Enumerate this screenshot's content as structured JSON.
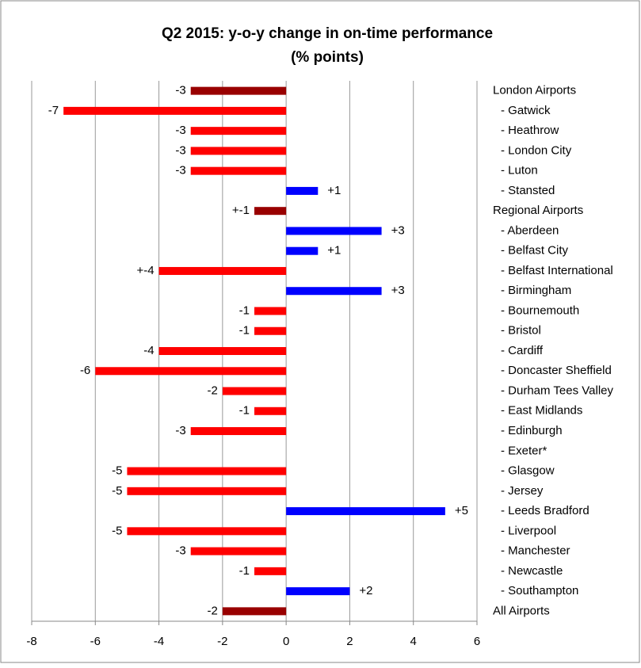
{
  "chart_data": {
    "type": "bar",
    "orientation": "horizontal",
    "title": "Q2 2015: y-o-y change in on-time performance",
    "subtitle": "(% points)",
    "categories": [
      "London Airports",
      "- Gatwick",
      "- Heathrow",
      "- London City",
      "- Luton",
      "- Stansted",
      "Regional Airports",
      "- Aberdeen",
      "- Belfast City",
      "- Belfast International",
      "- Birmingham",
      "- Bournemouth",
      "- Bristol",
      "- Cardiff",
      "- Doncaster Sheffield",
      "- Durham Tees Valley",
      "- East Midlands",
      "- Edinburgh",
      "- Exeter*",
      "- Glasgow",
      "- Jersey",
      "- Leeds Bradford",
      "- Liverpool",
      "- Manchester",
      "- Newcastle",
      "- Southampton",
      "All Airports"
    ],
    "values": [
      -3,
      -7,
      -3,
      -3,
      -3,
      1,
      -1,
      3,
      1,
      -4,
      3,
      -1,
      -1,
      -4,
      -6,
      -2,
      -1,
      -3,
      null,
      -5,
      -5,
      5,
      -5,
      -3,
      -1,
      2,
      -2
    ],
    "value_labels": [
      "-3",
      "-7",
      "-3",
      "-3",
      "-3",
      "+1",
      "+-1",
      "+3",
      "+1",
      "+-4",
      "+3",
      "-1",
      "-1",
      "-4",
      "-6",
      "-2",
      "-1",
      "-3",
      null,
      "-5",
      "-5",
      "+5",
      "-5",
      "-3",
      "-1",
      "+2",
      "-2"
    ],
    "colors": [
      "#990000",
      "#ff0000",
      "#ff0000",
      "#ff0000",
      "#ff0000",
      "#0000ff",
      "#990000",
      "#0000ff",
      "#0000ff",
      "#ff0000",
      "#0000ff",
      "#ff0000",
      "#ff0000",
      "#ff0000",
      "#ff0000",
      "#ff0000",
      "#ff0000",
      "#ff0000",
      null,
      "#ff0000",
      "#ff0000",
      "#0000ff",
      "#ff0000",
      "#ff0000",
      "#ff0000",
      "#0000ff",
      "#990000"
    ],
    "xlim": [
      -8,
      6
    ],
    "xticks": [
      -8,
      -6,
      -4,
      -2,
      0,
      2,
      4,
      6
    ],
    "grid": true
  }
}
